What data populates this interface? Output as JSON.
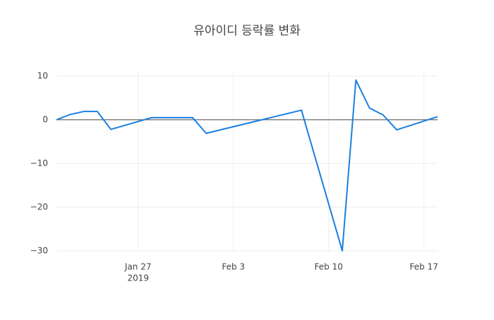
{
  "chart_data": {
    "type": "line",
    "title": "유아이디 등락률 변화",
    "x": [
      "2019-01-21",
      "2019-01-22",
      "2019-01-23",
      "2019-01-24",
      "2019-01-25",
      "2019-01-28",
      "2019-01-31",
      "2019-02-01",
      "2019-02-08",
      "2019-02-11",
      "2019-02-12",
      "2019-02-13",
      "2019-02-14",
      "2019-02-15",
      "2019-02-18"
    ],
    "series": [
      {
        "name": "등락률",
        "color": "#1a7fe0",
        "values": [
          0,
          1.2,
          1.9,
          1.9,
          -2.2,
          0.5,
          0.5,
          -3.1,
          2.2,
          -30,
          9.1,
          2.7,
          1.1,
          -2.3,
          0.7
        ]
      }
    ],
    "xlim": [
      "2019-01-21",
      "2019-02-18"
    ],
    "xticks": [
      {
        "value": "2019-01-27",
        "label": "Jan 27"
      },
      {
        "value": "2019-02-03",
        "label": "Feb 3"
      },
      {
        "value": "2019-02-10",
        "label": "Feb 10"
      },
      {
        "value": "2019-02-17",
        "label": "Feb 17"
      }
    ],
    "x_year_label": "2019",
    "ylim": [
      -30.2,
      11
    ],
    "yticks": [
      10,
      0,
      {
        "value": -10,
        "label": "−10"
      },
      {
        "value": -20,
        "label": "−20"
      },
      {
        "value": -30,
        "label": "−30"
      }
    ],
    "grid": true
  }
}
